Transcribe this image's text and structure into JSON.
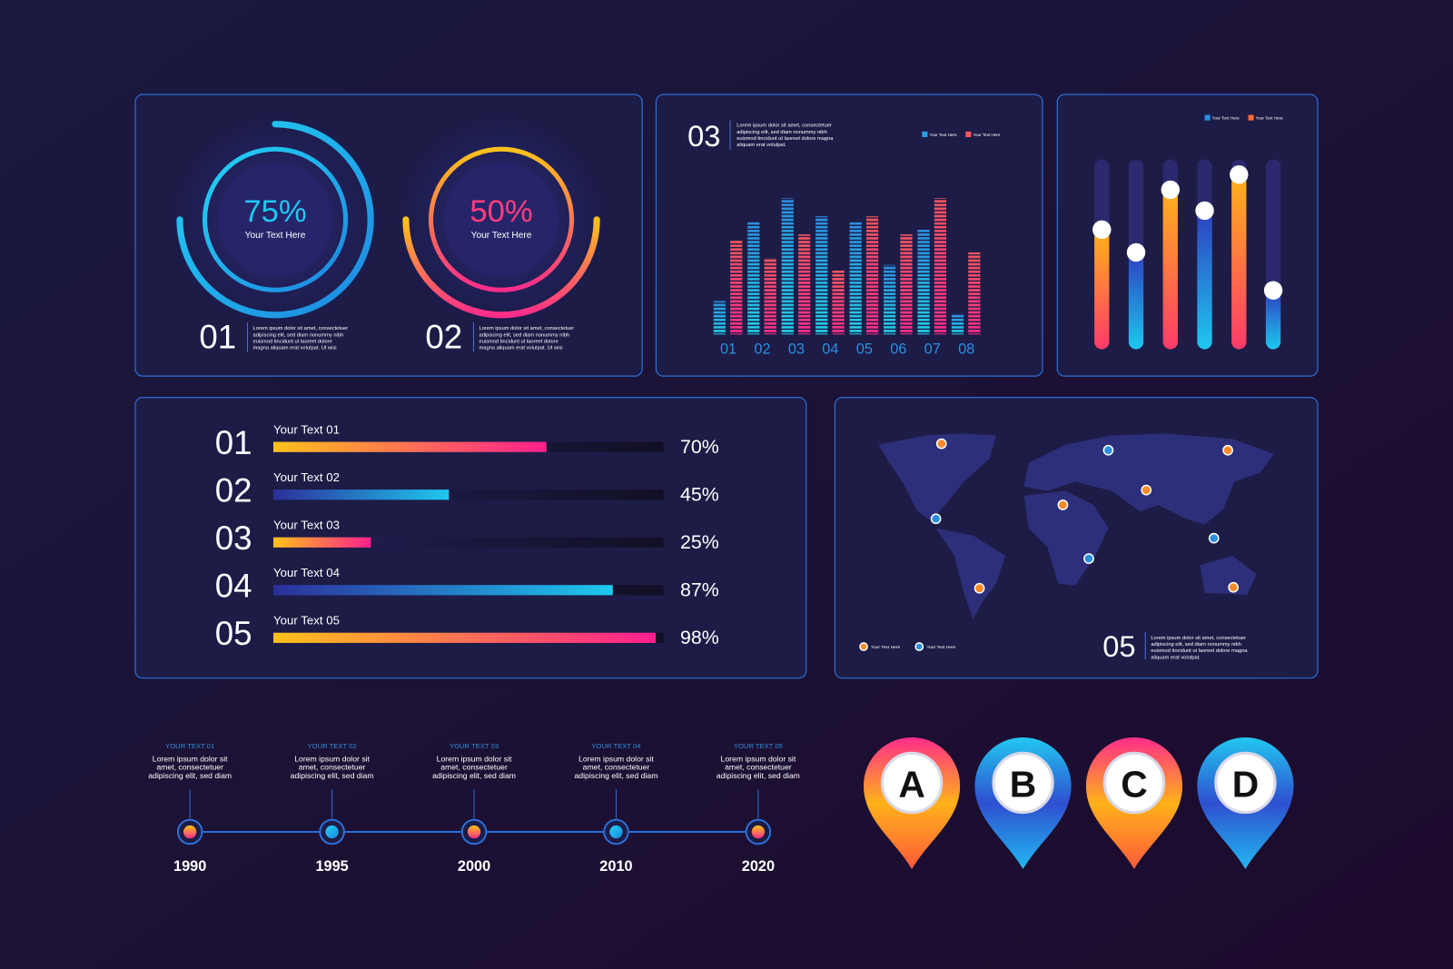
{
  "chart_data": [
    {
      "type": "donut",
      "values": [
        75
      ],
      "value_labels": [
        "75%"
      ],
      "caption": "Your Text Here",
      "number": "01",
      "color": "#1ec8f0",
      "text": [
        "Lorem ipsum dolor sit amet, consectetuer",
        "adipiscing elit, sed diam nonummy nibh",
        "euismod tincidunt ut laoreet dolore",
        "magna aliquam erat volutpat. Ut wisi"
      ]
    },
    {
      "type": "donut",
      "values": [
        50
      ],
      "value_labels": [
        "50%"
      ],
      "caption": "Your Text Here",
      "number": "02",
      "color": "#ff3d7f",
      "text": [
        "Lorem ipsum dolor sit amet, consectetuer",
        "adipiscing elit, sed diam nonummy nibh",
        "euismod tincidunt ut laoreet dolore",
        "magna aliquam erat volutpat. Ut wisi"
      ]
    },
    {
      "type": "bar",
      "number": "03",
      "text": [
        "Lorem ipsum dolor sit amet, consectetuer",
        "adipiscing elit, sed diam nonummy nibh",
        "euismod tincidunt ut laoreet dolore magna",
        "aliquam erat volutpat."
      ],
      "categories": [
        "01",
        "02",
        "03",
        "04",
        "05",
        "06",
        "07",
        "08"
      ],
      "series": [
        {
          "name": "Your Text Here",
          "color": "#2a9fe6",
          "values": [
            24,
            81,
            98,
            85,
            81,
            50,
            76,
            15
          ]
        },
        {
          "name": "Your Text Here",
          "color": "#f5575e",
          "values": [
            68,
            55,
            72,
            46,
            85,
            72,
            98,
            59
          ]
        }
      ],
      "ylim": [
        0,
        100
      ]
    },
    {
      "type": "slider",
      "values": [
        63,
        51,
        84,
        73,
        92,
        31
      ],
      "ylim": [
        0,
        100
      ],
      "legend": [
        {
          "name": "Your Text Here",
          "color": "#2a8fe0"
        },
        {
          "name": "Your Text Here",
          "color": "#ff6a3d"
        }
      ]
    },
    {
      "type": "progress",
      "numbers": [
        "01",
        "02",
        "03",
        "04",
        "05"
      ],
      "categories": [
        "Your Text 01",
        "Your Text 02",
        "Your Text 03",
        "Your Text 04",
        "Your Text 05"
      ],
      "values": [
        70,
        45,
        25,
        87,
        98
      ],
      "value_labels": [
        "70%",
        "45%",
        "25%",
        "87%",
        "98%"
      ],
      "xlim": [
        0,
        100
      ]
    }
  ],
  "map": {
    "number": "05",
    "text": [
      "Lorem ipsum dolor sit amet, consectetuer",
      "adipiscing elit, sed diam nonummy nibh",
      "euismod tincidunt ut laoreet dolore magna",
      "aliquam erat volutpat."
    ],
    "legend": [
      "Your Text Here",
      "Your Text Here"
    ]
  },
  "timeline": [
    {
      "title": "YOUR TEXT 01",
      "text": [
        "Lorem ipsum dolor sit",
        "amet, consectetuer",
        "adipiscing elit, sed diam"
      ],
      "year": "1990"
    },
    {
      "title": "YOUR TEXT 02",
      "text": [
        "Lorem ipsum dolor sit",
        "amet, consectetuer",
        "adipiscing elit, sed diam"
      ],
      "year": "1995"
    },
    {
      "title": "YOUR TEXT 03",
      "text": [
        "Lorem ipsum dolor sit",
        "amet, consectetuer",
        "adipiscing elit, sed diam"
      ],
      "year": "2000"
    },
    {
      "title": "YOUR TEXT 04",
      "text": [
        "Lorem ipsum dolor sit",
        "amet, consectetuer",
        "adipiscing elit, sed diam"
      ],
      "year": "2010"
    },
    {
      "title": "YOUR TEXT 05",
      "text": [
        "Lorem ipsum dolor sit",
        "amet, consectetuer",
        "adipiscing elit, sed diam"
      ],
      "year": "2020"
    }
  ],
  "pins": [
    "A",
    "B",
    "C",
    "D"
  ]
}
